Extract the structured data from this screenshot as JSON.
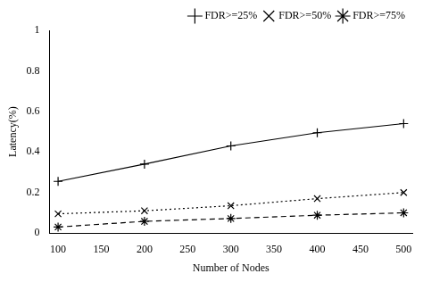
{
  "chart_data": {
    "type": "line",
    "x": [
      100,
      200,
      300,
      400,
      500
    ],
    "series": [
      {
        "name": "FDR>=25%",
        "color": "#000000",
        "marker": "plus",
        "line_style": "solid",
        "values": [
          0.255,
          0.34,
          0.43,
          0.495,
          0.54
        ]
      },
      {
        "name": "FDR>=50%",
        "color": "#000000",
        "marker": "x",
        "line_style": "dotted",
        "values": [
          0.095,
          0.11,
          0.135,
          0.17,
          0.2
        ]
      },
      {
        "name": "FDR>=75%",
        "color": "#000000",
        "marker": "star",
        "line_style": "dashed",
        "values": [
          0.03,
          0.058,
          0.072,
          0.088,
          0.1
        ]
      }
    ],
    "xlabel": "Number of Nodes",
    "ylabel": "Latency(%)",
    "xlim": [
      90,
      510
    ],
    "ylim": [
      0,
      1.0
    ],
    "xticks": [
      100,
      150,
      200,
      250,
      300,
      350,
      400,
      450,
      500
    ],
    "yticks": [
      0,
      0.2,
      0.4,
      0.6,
      0.8,
      1
    ],
    "grid": false,
    "legend": "upper right"
  }
}
